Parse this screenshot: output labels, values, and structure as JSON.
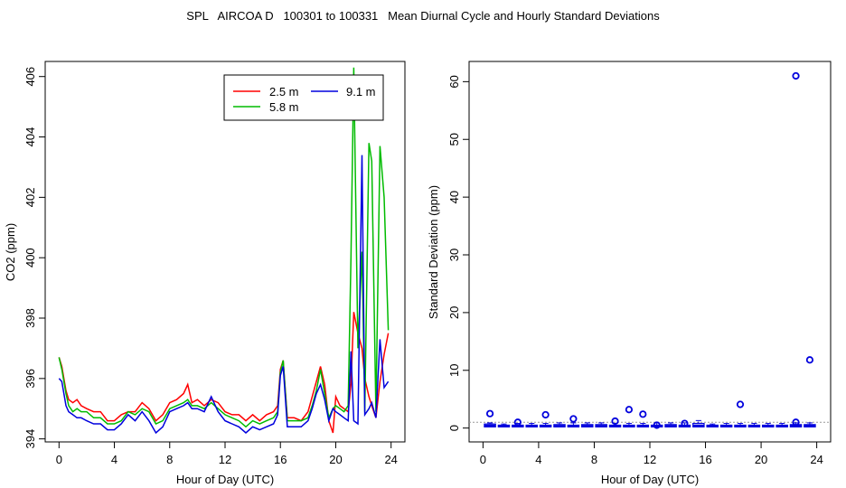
{
  "title": "SPL   AIRCOA D   100301 to 100331   Mean Diurnal Cycle and Hourly Standard Deviations",
  "chart_data": [
    {
      "type": "line",
      "xlabel": "Hour of Day (UTC)",
      "ylabel": "CO2 (ppm)",
      "xlim": [
        -1,
        25
      ],
      "ylim": [
        393.9,
        406.5
      ],
      "xticks": [
        "0",
        "4",
        "8",
        "12",
        "16",
        "20",
        "24"
      ],
      "xtick_values": [
        0,
        4,
        8,
        12,
        16,
        20,
        24
      ],
      "yticks": [
        "394",
        "396",
        "398",
        "400",
        "402",
        "404",
        "406"
      ],
      "ytick_values": [
        394,
        396,
        398,
        400,
        402,
        404,
        406
      ],
      "legend_position": "top-right",
      "series": [
        {
          "name": "2.5 m",
          "color": "#ff0000",
          "x": [
            0,
            0.2,
            0.5,
            0.7,
            1,
            1.3,
            1.6,
            2,
            2.5,
            3,
            3.5,
            4,
            4.5,
            5,
            5.5,
            6,
            6.5,
            7,
            7.5,
            8,
            8.5,
            9,
            9.3,
            9.6,
            10,
            10.5,
            11,
            11.5,
            12,
            12.5,
            13,
            13.5,
            14,
            14.5,
            15,
            15.5,
            15.8,
            16,
            16.2,
            16.5,
            17,
            17.5,
            18,
            18.3,
            18.6,
            18.9,
            19.2,
            19.5,
            19.8,
            20,
            20.3,
            20.6,
            20.9,
            21.1,
            21.3,
            21.6,
            21.9,
            22.1,
            22.4,
            22.6,
            22.9,
            23.2,
            23.5,
            23.8
          ],
          "y": [
            396.7,
            396.4,
            395.6,
            395.3,
            395.2,
            395.3,
            395.1,
            395.0,
            394.9,
            394.9,
            394.6,
            394.6,
            394.8,
            394.9,
            394.9,
            395.2,
            395.0,
            394.6,
            394.8,
            395.2,
            395.3,
            395.5,
            395.8,
            395.2,
            395.3,
            395.1,
            395.3,
            395.2,
            394.9,
            394.8,
            394.8,
            394.6,
            394.8,
            394.6,
            394.8,
            394.9,
            395.1,
            396.3,
            396.6,
            394.7,
            394.7,
            394.6,
            394.9,
            395.4,
            395.9,
            396.4,
            395.8,
            394.6,
            394.2,
            395.4,
            395.1,
            395.0,
            394.9,
            395.8,
            398.2,
            397.5,
            397.0,
            396.0,
            395.4,
            395.1,
            394.7,
            395.9,
            396.8,
            397.5
          ]
        },
        {
          "name": "5.8 m",
          "color": "#00bb00",
          "x": [
            0,
            0.2,
            0.5,
            0.7,
            1,
            1.3,
            1.6,
            2,
            2.5,
            3,
            3.5,
            4,
            4.5,
            5,
            5.5,
            6,
            6.5,
            7,
            7.5,
            8,
            8.5,
            9,
            9.3,
            9.6,
            10,
            10.5,
            11,
            11.5,
            12,
            12.5,
            13,
            13.5,
            14,
            14.5,
            15,
            15.5,
            15.8,
            16,
            16.2,
            16.5,
            17,
            17.5,
            18,
            18.3,
            18.6,
            18.9,
            19.2,
            19.5,
            19.8,
            20,
            20.3,
            20.6,
            20.9,
            21.1,
            21.3,
            21.6,
            21.9,
            22.1,
            22.4,
            22.6,
            22.9,
            23.2,
            23.5,
            23.8
          ],
          "y": [
            396.7,
            396.3,
            395.5,
            395.1,
            394.9,
            395.0,
            394.9,
            394.9,
            394.7,
            394.7,
            394.5,
            394.5,
            394.6,
            394.9,
            394.8,
            395.0,
            394.9,
            394.5,
            394.6,
            395.0,
            395.1,
            395.2,
            395.3,
            395.1,
            395.1,
            395.0,
            395.2,
            395.0,
            394.8,
            394.7,
            394.6,
            394.4,
            394.6,
            394.5,
            394.6,
            394.7,
            394.9,
            396.2,
            396.6,
            394.6,
            394.6,
            394.6,
            394.7,
            395.1,
            395.6,
            396.3,
            395.5,
            394.7,
            395.0,
            395.1,
            395.0,
            394.9,
            395.1,
            400.0,
            406.3,
            397.0,
            400.2,
            394.9,
            403.8,
            403.2,
            394.9,
            403.7,
            402.0,
            397.6
          ]
        },
        {
          "name": "9.1 m",
          "color": "#0000dd",
          "x": [
            0,
            0.2,
            0.5,
            0.7,
            1,
            1.3,
            1.6,
            2,
            2.5,
            3,
            3.5,
            4,
            4.5,
            5,
            5.5,
            6,
            6.5,
            7,
            7.5,
            8,
            8.5,
            9,
            9.3,
            9.6,
            10,
            10.5,
            11,
            11.5,
            12,
            12.5,
            13,
            13.5,
            14,
            14.5,
            15,
            15.5,
            15.8,
            16,
            16.2,
            16.5,
            17,
            17.5,
            18,
            18.3,
            18.6,
            18.9,
            19.2,
            19.5,
            19.8,
            20,
            20.3,
            20.6,
            20.9,
            21.1,
            21.3,
            21.6,
            21.9,
            22.1,
            22.4,
            22.6,
            22.9,
            23.2,
            23.5,
            23.8
          ],
          "y": [
            396.0,
            395.9,
            395.1,
            394.9,
            394.8,
            394.7,
            394.7,
            394.6,
            394.5,
            394.5,
            394.3,
            394.3,
            394.5,
            394.8,
            394.6,
            394.9,
            394.6,
            394.2,
            394.4,
            394.9,
            395.0,
            395.1,
            395.2,
            395.0,
            395.0,
            394.9,
            395.4,
            394.9,
            394.6,
            394.5,
            394.4,
            394.2,
            394.4,
            394.3,
            394.4,
            394.5,
            394.8,
            396.1,
            396.4,
            394.4,
            394.4,
            394.4,
            394.6,
            395.0,
            395.5,
            395.8,
            395.3,
            394.6,
            395.0,
            394.9,
            394.8,
            394.7,
            394.6,
            396.9,
            394.6,
            394.5,
            403.4,
            394.8,
            395.0,
            395.2,
            394.7,
            397.3,
            395.7,
            395.9
          ]
        }
      ]
    },
    {
      "type": "box",
      "xlabel": "Hour of Day (UTC)",
      "ylabel": "Standard Deviation (ppm)",
      "xlim": [
        -1,
        25
      ],
      "ylim": [
        -2.4,
        63.5
      ],
      "xticks": [
        "0",
        "4",
        "8",
        "12",
        "16",
        "20",
        "24"
      ],
      "xtick_values": [
        0,
        4,
        8,
        12,
        16,
        20,
        24
      ],
      "yticks": [
        "0",
        "10",
        "20",
        "30",
        "40",
        "50",
        "60"
      ],
      "ytick_values": [
        0,
        10,
        20,
        30,
        40,
        50,
        60
      ],
      "reference_line": 1,
      "box_color": "#0000dd",
      "hours": [
        0.5,
        1.5,
        2.5,
        3.5,
        4.5,
        5.5,
        6.5,
        7.5,
        8.5,
        9.5,
        10.5,
        11.5,
        12.5,
        13.5,
        14.5,
        15.5,
        16.5,
        17.5,
        18.5,
        19.5,
        20.5,
        21.5,
        22.5,
        23.5
      ],
      "medians": [
        0.4,
        0.3,
        0.3,
        0.3,
        0.3,
        0.3,
        0.3,
        0.3,
        0.3,
        0.3,
        0.3,
        0.3,
        0.3,
        0.3,
        0.3,
        0.4,
        0.3,
        0.3,
        0.3,
        0.3,
        0.3,
        0.3,
        0.4,
        0.4
      ],
      "q1": [
        0.2,
        0.2,
        0.2,
        0.2,
        0.2,
        0.2,
        0.2,
        0.2,
        0.2,
        0.2,
        0.2,
        0.2,
        0.2,
        0.2,
        0.2,
        0.2,
        0.2,
        0.2,
        0.2,
        0.2,
        0.2,
        0.2,
        0.2,
        0.2
      ],
      "q3": [
        0.7,
        0.5,
        0.5,
        0.5,
        0.5,
        0.6,
        0.5,
        0.6,
        0.6,
        0.5,
        0.5,
        0.5,
        0.5,
        0.6,
        0.5,
        0.8,
        0.5,
        0.5,
        0.5,
        0.5,
        0.5,
        0.5,
        0.6,
        0.6
      ],
      "whisker_high": [
        0.9,
        0.7,
        0.8,
        0.8,
        0.8,
        0.9,
        0.9,
        0.9,
        0.9,
        0.8,
        0.8,
        0.8,
        0.9,
        0.9,
        0.9,
        1.3,
        0.7,
        0.8,
        0.8,
        0.8,
        0.8,
        0.8,
        0.9,
        0.9
      ],
      "outliers": [
        {
          "x": 0.5,
          "y": 2.5
        },
        {
          "x": 2.5,
          "y": 1.0
        },
        {
          "x": 4.5,
          "y": 2.3
        },
        {
          "x": 6.5,
          "y": 1.6
        },
        {
          "x": 9.5,
          "y": 1.2
        },
        {
          "x": 10.5,
          "y": 3.2
        },
        {
          "x": 11.5,
          "y": 2.4
        },
        {
          "x": 12.5,
          "y": 0.5
        },
        {
          "x": 14.5,
          "y": 0.8
        },
        {
          "x": 18.5,
          "y": 4.1
        },
        {
          "x": 22.5,
          "y": 61.0
        },
        {
          "x": 22.5,
          "y": 1.0
        },
        {
          "x": 23.5,
          "y": 11.8
        }
      ]
    }
  ]
}
